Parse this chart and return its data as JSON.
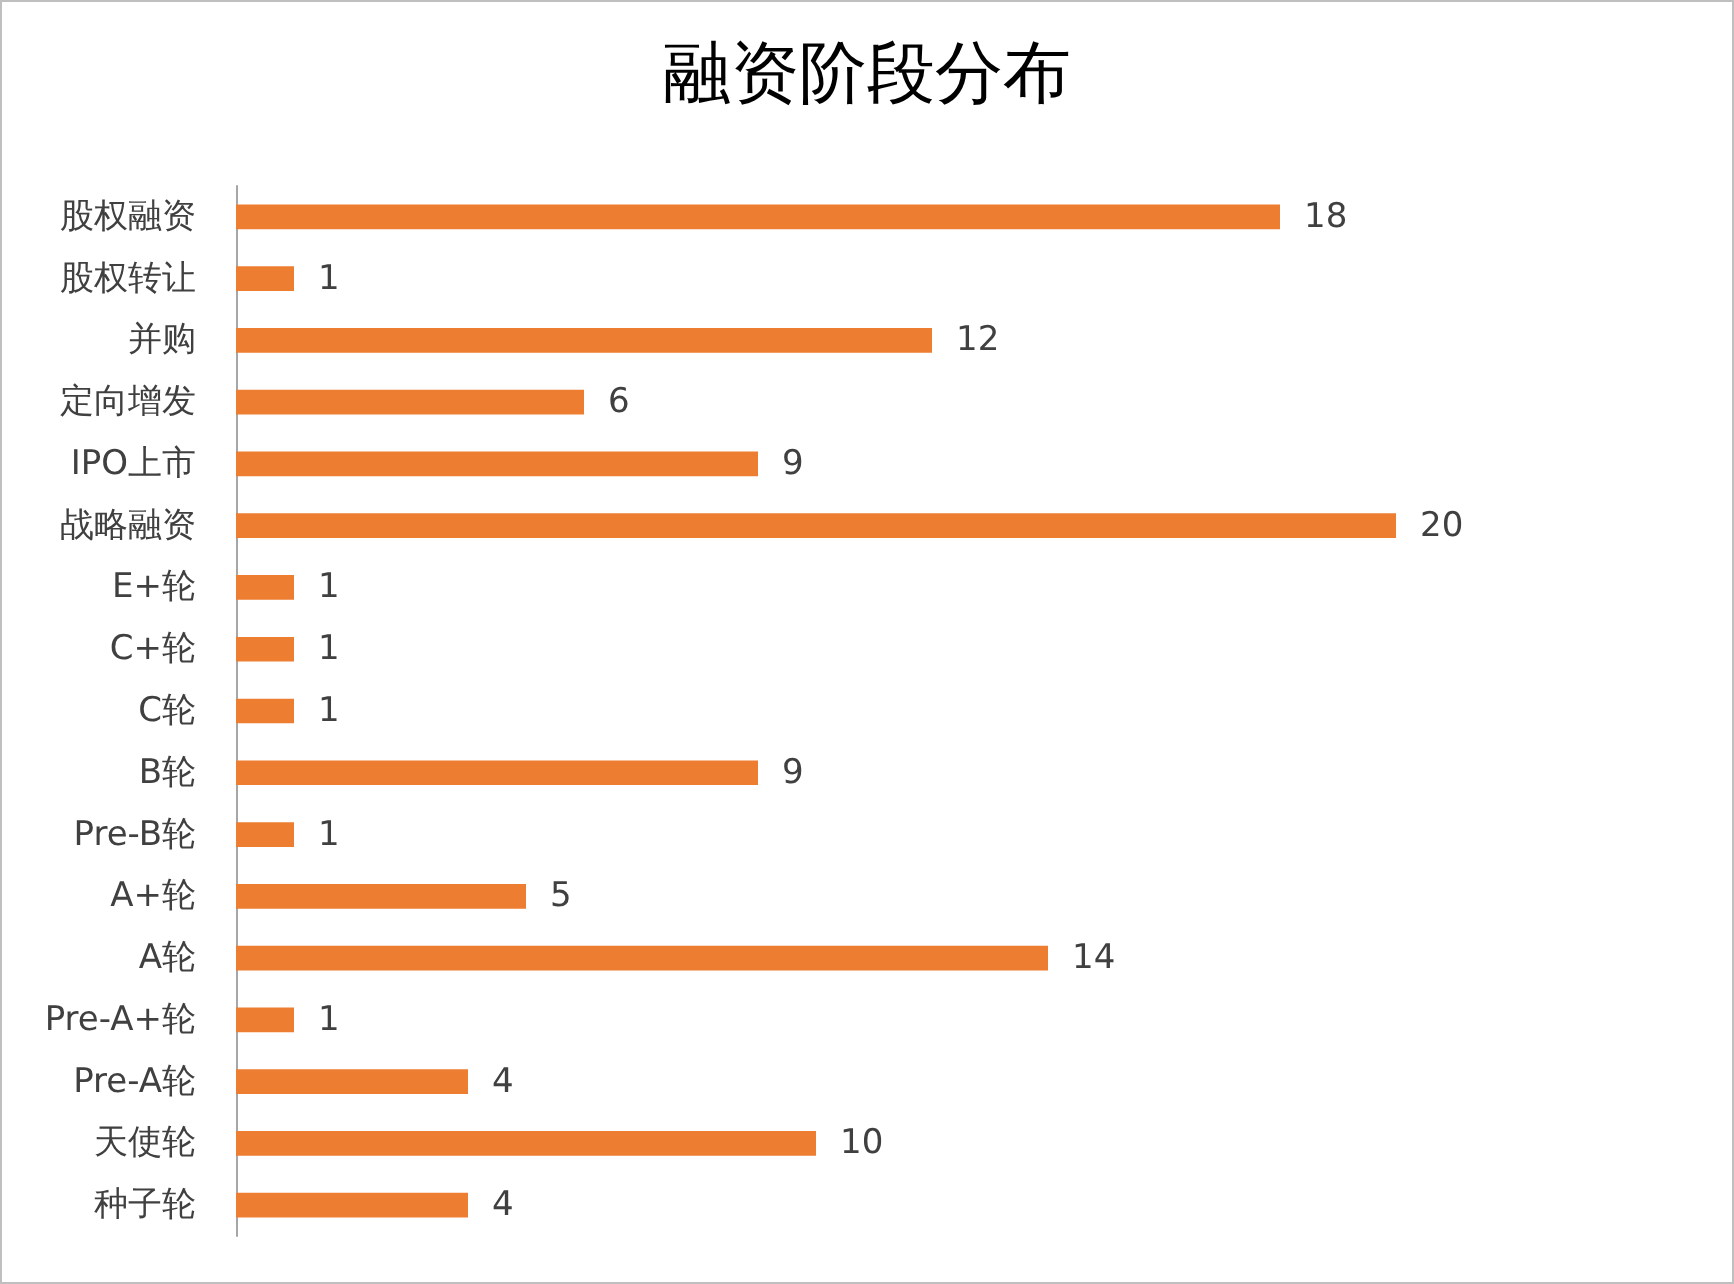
{
  "chart_data": {
    "type": "bar",
    "title": "融资阶段分布",
    "orientation": "horizontal",
    "categories": [
      "股权融资",
      "股权转让",
      "并购",
      "定向增发",
      "IPO上市",
      "战略融资",
      "E+轮",
      "C+轮",
      "C轮",
      "B轮",
      "Pre-B轮",
      "A+轮",
      "A轮",
      "Pre-A+轮",
      "Pre-A轮",
      "天使轮",
      "种子轮"
    ],
    "values": [
      18,
      1,
      12,
      6,
      9,
      20,
      1,
      1,
      1,
      9,
      1,
      5,
      14,
      1,
      4,
      10,
      4
    ],
    "color": "#ed7d31",
    "data_labels": true
  }
}
